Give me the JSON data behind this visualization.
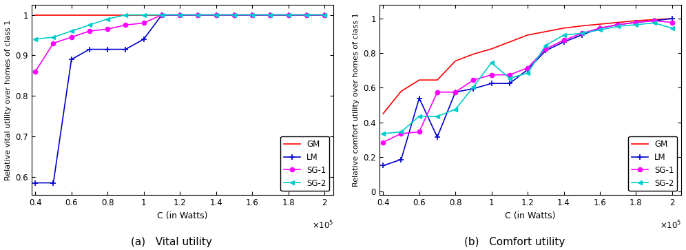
{
  "x_vals": [
    0.4,
    0.5,
    0.6,
    0.7,
    0.8,
    0.9,
    1.0,
    1.1,
    1.2,
    1.3,
    1.4,
    1.5,
    1.6,
    1.7,
    1.8,
    1.9,
    2.0
  ],
  "vital_GM": [
    1.0,
    1.0,
    1.0,
    1.0,
    1.0,
    1.0,
    1.0,
    1.0,
    1.0,
    1.0,
    1.0,
    1.0,
    1.0,
    1.0,
    1.0,
    1.0,
    1.0
  ],
  "vital_LM": [
    0.585,
    0.585,
    0.89,
    0.915,
    0.915,
    0.915,
    0.94,
    1.0,
    1.0,
    1.0,
    1.0,
    1.0,
    1.0,
    1.0,
    1.0,
    1.0,
    1.0
  ],
  "vital_SG1": [
    0.86,
    0.93,
    0.945,
    0.96,
    0.965,
    0.975,
    0.98,
    1.0,
    1.0,
    1.0,
    1.0,
    1.0,
    1.0,
    1.0,
    1.0,
    1.0,
    1.0
  ],
  "vital_SG2": [
    0.94,
    0.945,
    0.96,
    0.975,
    0.99,
    1.0,
    1.0,
    1.0,
    1.0,
    1.0,
    1.0,
    1.0,
    1.0,
    1.0,
    1.0,
    1.0,
    1.0
  ],
  "comfort_GM": [
    0.45,
    0.58,
    0.645,
    0.645,
    0.755,
    0.795,
    0.825,
    0.865,
    0.905,
    0.925,
    0.945,
    0.958,
    0.968,
    0.978,
    0.988,
    0.994,
    1.0
  ],
  "comfort_LM": [
    0.15,
    0.185,
    0.54,
    0.315,
    0.575,
    0.595,
    0.625,
    0.625,
    0.705,
    0.815,
    0.865,
    0.905,
    0.945,
    0.965,
    0.978,
    0.988,
    1.0
  ],
  "comfort_SG1": [
    0.285,
    0.335,
    0.345,
    0.575,
    0.575,
    0.645,
    0.675,
    0.675,
    0.715,
    0.825,
    0.875,
    0.915,
    0.945,
    0.965,
    0.978,
    0.988,
    0.978
  ],
  "comfort_SG2": [
    0.335,
    0.345,
    0.435,
    0.435,
    0.475,
    0.605,
    0.745,
    0.655,
    0.685,
    0.845,
    0.905,
    0.915,
    0.935,
    0.955,
    0.965,
    0.975,
    0.945
  ],
  "color_GM": "#ff0000",
  "color_LM": "#0000cc",
  "color_SG1": "#ff00ff",
  "color_SG2": "#00cccc",
  "xlabel": "C (in Watts)",
  "ylabel_vital": "Relative vital utility over homes of class 1",
  "ylabel_comfort": "Relative comfort utility over homes of class 1",
  "caption_a": "(a)   Vital utility",
  "caption_b": "(b)   Comfort utility",
  "xlim": [
    0.38,
    2.05
  ],
  "vital_ylim": [
    0.555,
    1.025
  ],
  "comfort_ylim": [
    -0.02,
    1.08
  ],
  "xticks": [
    0.4,
    0.6,
    0.8,
    1.0,
    1.2,
    1.4,
    1.6,
    1.8,
    2.0
  ],
  "vital_yticks": [
    0.6,
    0.7,
    0.8,
    0.9,
    1.0
  ],
  "comfort_yticks": [
    0.0,
    0.2,
    0.4,
    0.6,
    0.8,
    1.0
  ]
}
